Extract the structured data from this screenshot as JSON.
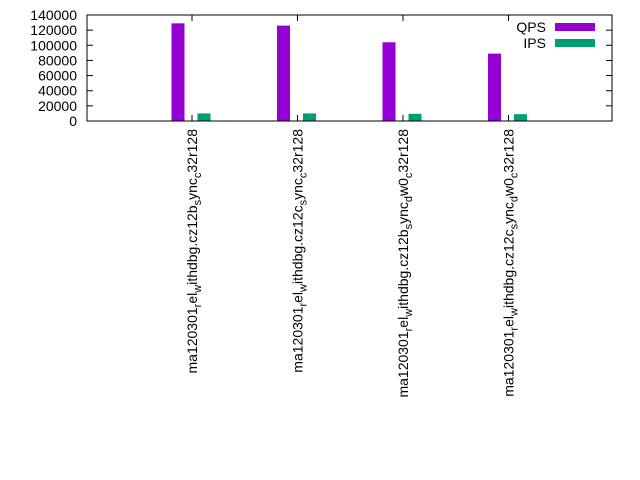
{
  "chart_data": {
    "type": "bar",
    "title": "",
    "xlabel": "",
    "ylabel": "",
    "ylim": [
      0,
      140000
    ],
    "yticks": [
      0,
      20000,
      40000,
      60000,
      80000,
      100000,
      120000,
      140000
    ],
    "yticks_text": [
      "0",
      "20000",
      "40000",
      "60000",
      "80000",
      "100000",
      "120000",
      "140000"
    ],
    "categories": [
      "ma120301_rel_withdbg.cz12b_sync_c32r128",
      "ma120301_rel_withdbg.cz12c_sync_c32r128",
      "ma120301_rel_withdbg.cz12b_sync_dw0_c32r128",
      "ma120301_rel_withdbg.cz12c_sync_dw0_c32r128"
    ],
    "category_display": [
      {
        "pre1": "ma120301",
        "sub1": "r",
        "mid1": "el",
        "sub2": "w",
        "mid2": "ithdbg.cz12b",
        "sub3": "s",
        "mid3": "ync",
        "sub4": "c",
        "post": "32r128"
      },
      {
        "pre1": "ma120301",
        "sub1": "r",
        "mid1": "el",
        "sub2": "w",
        "mid2": "ithdbg.cz12c",
        "sub3": "s",
        "mid3": "ync",
        "sub4": "c",
        "post": "32r128"
      },
      {
        "pre1": "ma120301",
        "sub1": "r",
        "mid1": "el",
        "sub2": "w",
        "mid2": "ithdbg.cz12b",
        "sub3": "s",
        "mid3": "ync",
        "sub4": "d",
        "post": "w0",
        "sub5": "c",
        "post2": "32r128"
      },
      {
        "pre1": "ma120301",
        "sub1": "r",
        "mid1": "el",
        "sub2": "w",
        "mid2": "ithdbg.cz12c",
        "sub3": "s",
        "mid3": "ync",
        "sub4": "d",
        "post": "w0",
        "sub5": "c",
        "post2": "32r128"
      }
    ],
    "series": [
      {
        "name": "QPS",
        "color": "#9400d3",
        "values": [
          129000,
          126000,
          104000,
          89000
        ]
      },
      {
        "name": "IPS",
        "color": "#009e73",
        "values": [
          10000,
          10000,
          9500,
          9000
        ]
      }
    ],
    "legend_position": "top-right",
    "grid": false
  }
}
